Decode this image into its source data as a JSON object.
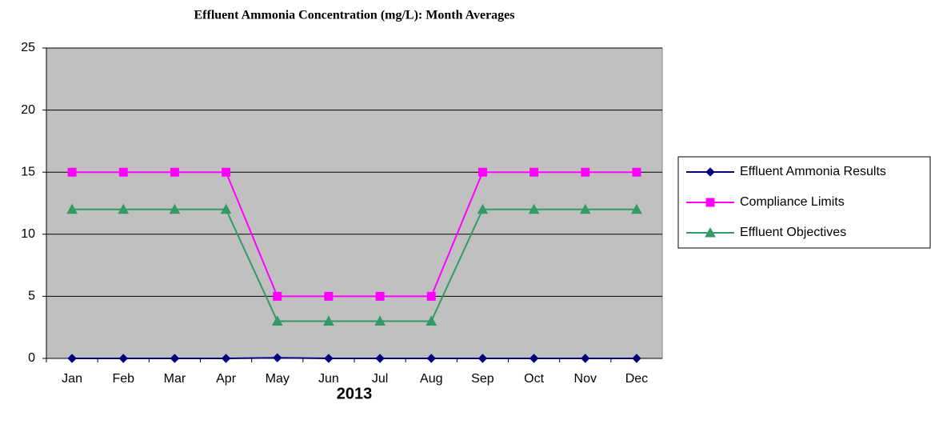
{
  "chart_data": {
    "type": "line",
    "title": "Effluent Ammonia Concentration (mg/L): Month Averages",
    "x_label": "2013",
    "categories": [
      "Jan",
      "Feb",
      "Mar",
      "Apr",
      "May",
      "Jun",
      "Jul",
      "Aug",
      "Sep",
      "Oct",
      "Nov",
      "Dec"
    ],
    "series": [
      {
        "name": "Effluent Ammonia Results",
        "color": "#000080",
        "marker": "diamond",
        "values": [
          0,
          0,
          0,
          0,
          0.05,
          0,
          0,
          0,
          0,
          0,
          0,
          0
        ]
      },
      {
        "name": "Compliance Limits",
        "color": "#ff00ff",
        "marker": "square",
        "values": [
          15,
          15,
          15,
          15,
          5,
          5,
          5,
          5,
          15,
          15,
          15,
          15
        ]
      },
      {
        "name": "Effluent Objectives",
        "color": "#339966",
        "marker": "triangle",
        "values": [
          12,
          12,
          12,
          12,
          3,
          3,
          3,
          3,
          12,
          12,
          12,
          12
        ]
      }
    ],
    "ylim": [
      0,
      25
    ],
    "yticks": [
      0,
      5,
      10,
      15,
      20,
      25
    ],
    "grid": true,
    "legend": "right"
  }
}
